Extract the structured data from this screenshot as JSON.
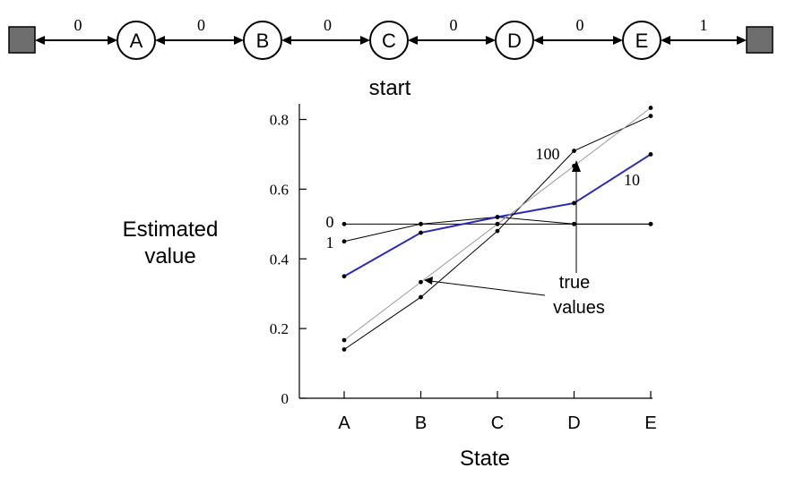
{
  "markov_chain": {
    "states": [
      "A",
      "B",
      "C",
      "D",
      "E"
    ],
    "rewards": [
      "0",
      "0",
      "0",
      "0",
      "0",
      "1"
    ],
    "start_label": "start",
    "terminal_color": "#6e6e6e"
  },
  "chart_data": {
    "type": "line",
    "xlabel": "State",
    "ylabel_lines": [
      "Estimated",
      "value"
    ],
    "categories": [
      "A",
      "B",
      "C",
      "D",
      "E"
    ],
    "ylim": [
      0,
      0.85
    ],
    "yticks": [
      0,
      0.2,
      0.4,
      0.6,
      0.8
    ],
    "ytick_labels": [
      "0",
      "0.2",
      "0.4",
      "0.6",
      "0.8"
    ],
    "grid": false,
    "series": [
      {
        "name": "0",
        "values": [
          0.5,
          0.5,
          0.5,
          0.5,
          0.5
        ],
        "color": "#000000",
        "width": 1
      },
      {
        "name": "1",
        "values": [
          0.45,
          0.5,
          0.52,
          0.5,
          0.5
        ],
        "color": "#000000",
        "width": 1
      },
      {
        "name": "10",
        "values": [
          0.35,
          0.475,
          0.52,
          0.56,
          0.7
        ],
        "color": "#2a2ab8",
        "width": 2
      },
      {
        "name": "100",
        "values": [
          0.14,
          0.29,
          0.48,
          0.71,
          0.81
        ],
        "color": "#000000",
        "width": 1
      },
      {
        "name": "true values",
        "values": [
          0.1667,
          0.3333,
          0.5,
          0.6667,
          0.8333
        ],
        "color": "#999999",
        "width": 1
      }
    ],
    "annotations": {
      "true_values": [
        "true",
        "values"
      ],
      "label_0": "0",
      "label_1": "1",
      "label_10": "10",
      "label_100": "100"
    }
  }
}
